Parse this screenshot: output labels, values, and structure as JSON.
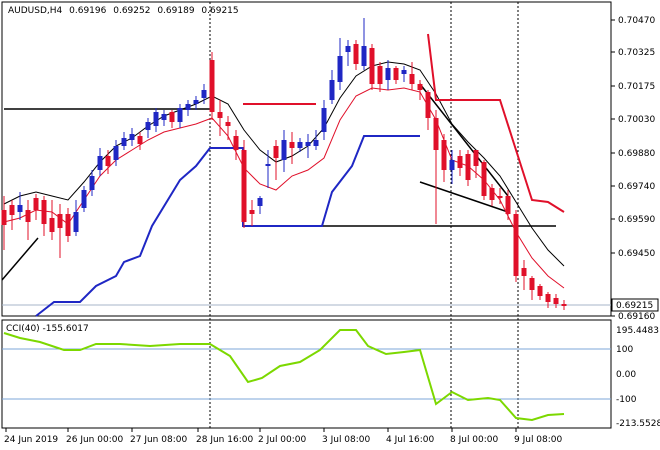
{
  "header": {
    "symbol": "AUDUSD,H4",
    "open": "0.69196",
    "high": "0.69252",
    "low": "0.69189",
    "close": "0.69215"
  },
  "price_axis": {
    "ticks": [
      "0.70470",
      "0.70325",
      "0.70175",
      "0.70030",
      "0.69880",
      "0.69740",
      "0.69590",
      "0.69450",
      "0.69160"
    ],
    "current_price": "0.69215",
    "current_box_color": "#ffffff"
  },
  "cci_panel": {
    "label": "CCI(40) -155.6017",
    "ticks": [
      "195.4483",
      "100",
      "0.00",
      "-100",
      "-213.5528"
    ],
    "line_color": "#7cd800"
  },
  "time_axis": [
    "24 Jun 2019",
    "26 Jun 00:00",
    "27 Jun 08:00",
    "28 Jun 16:00",
    "2 Jul 00:00",
    "3 Jul 08:00",
    "4 Jul 16:00",
    "8 Jul 00:00",
    "9 Jul 08:00"
  ],
  "colors": {
    "bull": "#1f27c4",
    "bear": "#e0102a",
    "ma_fast": "#e0102a",
    "ma_slow": "#000000",
    "channel_low": "#1f27c4",
    "channel_high": "#e0102a"
  },
  "chart_data": {
    "type": "candlestick",
    "x": [
      "24 Jun 2019",
      "26 Jun 00:00",
      "27 Jun 08:00",
      "28 Jun 16:00",
      "2 Jul 00:00",
      "3 Jul 08:00",
      "4 Jul 16:00",
      "8 Jul 00:00",
      "9 Jul 08:00"
    ],
    "price_range": [
      0.6916,
      0.7047
    ],
    "last_close": 0.69215,
    "cci": {
      "last": -155.6017,
      "range": [
        -213.5528,
        195.4483
      ]
    }
  }
}
